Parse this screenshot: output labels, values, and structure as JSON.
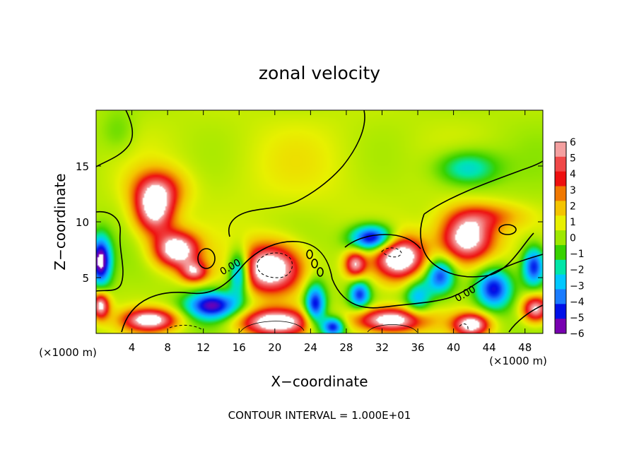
{
  "chart_data": {
    "type": "heatmap",
    "title": "zonal velocity",
    "xlabel": "X−coordinate",
    "ylabel": "Z−coordinate",
    "x_unit_label": "(×1000 m)",
    "y_unit_label": "(×1000 m)",
    "xlim": [
      0,
      50
    ],
    "ylim": [
      0,
      20
    ],
    "x_ticks": [
      4,
      8,
      12,
      16,
      20,
      24,
      28,
      32,
      36,
      40,
      44,
      48
    ],
    "y_ticks": [
      5,
      10,
      15
    ],
    "colorbar": {
      "levels": [
        6,
        5,
        4,
        3,
        2,
        1,
        0,
        -1,
        -2,
        -3,
        -4,
        -5,
        -6
      ],
      "labels": [
        "6",
        "5",
        "4",
        "3",
        "2",
        "1",
        "0",
        "−1",
        "−2",
        "−3",
        "−4",
        "−5",
        "−6"
      ],
      "colors": [
        "#f4a0a0",
        "#f04848",
        "#ee1010",
        "#f07800",
        "#f4c400",
        "#e8f000",
        "#9ee800",
        "#38d200",
        "#00e6a8",
        "#00c8ff",
        "#1a7cff",
        "#0010e8",
        "#7800b0"
      ]
    },
    "contour_interval_text": "CONTOUR INTERVAL = 1.000E+01",
    "contour_labels": [
      {
        "text": "0.00",
        "x": 15.2,
        "z": 5.7
      },
      {
        "text": "0.00",
        "x": 41.5,
        "z": 3.3
      }
    ],
    "field_features": [
      {
        "x": 22,
        "z": 15,
        "v": 0.6,
        "sx": 14,
        "sz": 5
      },
      {
        "x": 6.5,
        "z": 11,
        "v": 6.5,
        "sx": 2.2,
        "sz": 2.2
      },
      {
        "x": 9,
        "z": 7.5,
        "v": 7.5,
        "sx": 2.5,
        "sz": 1.6
      },
      {
        "x": 11,
        "z": 5.5,
        "v": 5,
        "sx": 1.6,
        "sz": 1.0
      },
      {
        "x": 7,
        "z": 13,
        "v": 3.5,
        "sx": 3,
        "sz": 1.8
      },
      {
        "x": 0.5,
        "z": 6.5,
        "v": -7,
        "sx": 1.2,
        "sz": 2.2
      },
      {
        "x": 0.5,
        "z": 2.5,
        "v": 6.5,
        "sx": 1.0,
        "sz": 1.2
      },
      {
        "x": 6,
        "z": 1.2,
        "v": 7,
        "sx": 3,
        "sz": 1.0
      },
      {
        "x": 13,
        "z": 2.5,
        "v": -6,
        "sx": 3,
        "sz": 1.3
      },
      {
        "x": 19.5,
        "z": 5.8,
        "v": 8,
        "sx": 3.5,
        "sz": 2.2
      },
      {
        "x": 16,
        "z": 5.5,
        "v": -6,
        "sx": 1.2,
        "sz": 2.0
      },
      {
        "x": 20,
        "z": 1.0,
        "v": 7.5,
        "sx": 4,
        "sz": 1.2
      },
      {
        "x": 24.5,
        "z": 2.5,
        "v": -6,
        "sx": 1.2,
        "sz": 2.0
      },
      {
        "x": 26.5,
        "z": 0.6,
        "v": -6,
        "sx": 1.3,
        "sz": 0.9
      },
      {
        "x": 29,
        "z": 6.2,
        "v": 5.5,
        "sx": 1.2,
        "sz": 1.2
      },
      {
        "x": 29.5,
        "z": 3.5,
        "v": -5,
        "sx": 1.2,
        "sz": 1.3
      },
      {
        "x": 34,
        "z": 6.8,
        "v": 8,
        "sx": 2.8,
        "sz": 1.9
      },
      {
        "x": 31,
        "z": 8.5,
        "v": -7,
        "sx": 2.5,
        "sz": 1.2
      },
      {
        "x": 33,
        "z": 1.2,
        "v": 7.5,
        "sx": 4,
        "sz": 1.1
      },
      {
        "x": 36,
        "z": 3.2,
        "v": -3.5,
        "sx": 1.5,
        "sz": 1.8
      },
      {
        "x": 41.5,
        "z": 8.5,
        "v": 7.5,
        "sx": 3,
        "sz": 2.2
      },
      {
        "x": 38.5,
        "z": 5.2,
        "v": -5,
        "sx": 1.6,
        "sz": 1.6
      },
      {
        "x": 42,
        "z": 0.8,
        "v": 7,
        "sx": 2.0,
        "sz": 1.0
      },
      {
        "x": 44.5,
        "z": 4.0,
        "v": -5.5,
        "sx": 2.0,
        "sz": 1.8
      },
      {
        "x": 49.2,
        "z": 2.2,
        "v": 6.5,
        "sx": 1.5,
        "sz": 1.2
      },
      {
        "x": 49,
        "z": 6.0,
        "v": -5.5,
        "sx": 1.3,
        "sz": 1.8
      },
      {
        "x": 41.5,
        "z": 14.8,
        "v": -3.2,
        "sx": 3.5,
        "sz": 1.6
      },
      {
        "x": 44,
        "z": 10.5,
        "v": 2.5,
        "sx": 4,
        "sz": 1.2
      },
      {
        "x": 2.5,
        "z": 18,
        "v": -1,
        "sx": 2,
        "sz": 2
      }
    ]
  }
}
